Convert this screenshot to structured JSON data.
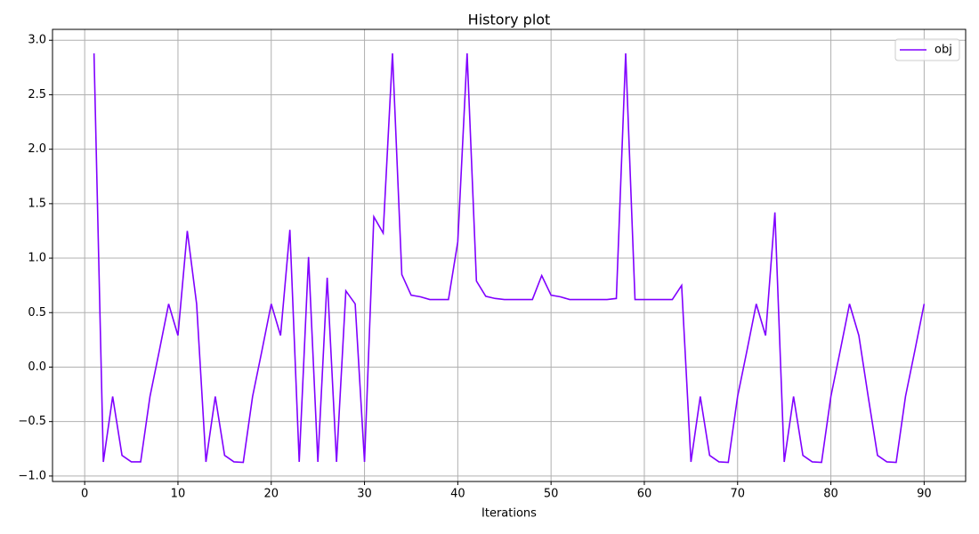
{
  "chart_data": {
    "type": "line",
    "title": "History plot",
    "x_label": "Iterations",
    "x": [
      1,
      2,
      3,
      4,
      5,
      6,
      7,
      8,
      9,
      10,
      11,
      12,
      13,
      14,
      15,
      16,
      17,
      18,
      19,
      20,
      21,
      22,
      23,
      24,
      25,
      26,
      27,
      28,
      29,
      30,
      31,
      32,
      33,
      34,
      35,
      36,
      37,
      38,
      39,
      40,
      41,
      42,
      43,
      44,
      45,
      46,
      47,
      48,
      49,
      50,
      51,
      52,
      53,
      54,
      55,
      56,
      57,
      58,
      59,
      60,
      61,
      62,
      63,
      64,
      65,
      66,
      67,
      68,
      69,
      70,
      71,
      72,
      73,
      74,
      75,
      76,
      77,
      78,
      79,
      80,
      81,
      82,
      83,
      84,
      85,
      86,
      87,
      88,
      89,
      90
    ],
    "series": [
      {
        "name": "obj",
        "color": "#8000ff",
        "values": [
          2.88,
          -0.87,
          -0.27,
          -0.81,
          -0.87,
          -0.87,
          -0.27,
          0.15,
          0.58,
          0.29,
          1.25,
          0.58,
          -0.87,
          -0.27,
          -0.81,
          -0.87,
          -0.875,
          -0.27,
          0.15,
          0.58,
          0.29,
          1.26,
          -0.87,
          1.01,
          -0.87,
          0.82,
          -0.87,
          0.7,
          0.58,
          -0.87,
          1.38,
          1.23,
          2.88,
          0.85,
          0.66,
          0.645,
          0.62,
          0.62,
          0.62,
          1.15,
          2.88,
          0.79,
          0.65,
          0.63,
          0.62,
          0.62,
          0.62,
          0.62,
          0.84,
          0.66,
          0.645,
          0.62,
          0.62,
          0.62,
          0.62,
          0.62,
          0.63,
          2.88,
          0.62,
          0.62,
          0.62,
          0.62,
          0.62,
          0.75,
          -0.87,
          -0.27,
          -0.81,
          -0.87,
          -0.875,
          -0.27,
          0.15,
          0.58,
          0.29,
          1.42,
          -0.87,
          -0.27,
          -0.81,
          -0.87,
          -0.875,
          -0.27,
          0.15,
          0.58,
          0.29,
          -0.27,
          -0.81,
          -0.87,
          -0.875,
          -0.27,
          0.15,
          0.58
        ]
      }
    ],
    "xlim": [
      -3.45,
      94.45
    ],
    "ylim": [
      -1.05,
      3.1
    ],
    "xticks": [
      0,
      10,
      20,
      30,
      40,
      50,
      60,
      70,
      80,
      90
    ],
    "yticks": [
      {
        "value": -1.0,
        "label": "−1.0"
      },
      {
        "value": -0.5,
        "label": "−0.5"
      },
      {
        "value": 0.0,
        "label": "0.0"
      },
      0.5,
      {
        "value": 1.0,
        "label": "1.0"
      },
      1.5,
      {
        "value": 2.0,
        "label": "2.0"
      },
      2.5,
      {
        "value": 3.0,
        "label": "3.0"
      }
    ],
    "grid": true,
    "legend": "upper right"
  }
}
